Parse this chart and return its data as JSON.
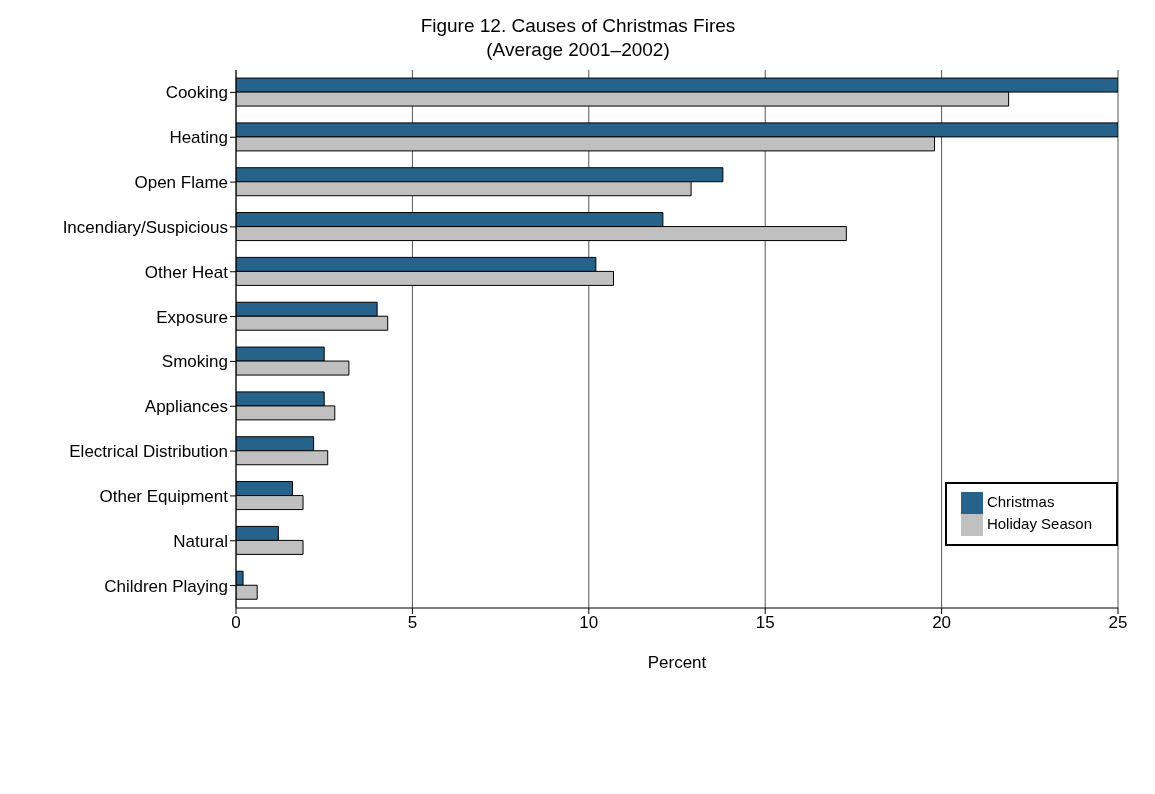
{
  "chart_data": {
    "type": "bar",
    "orientation": "horizontal",
    "title": "Figure 12. Causes of Christmas Fires",
    "subtitle": "(Average 2001–2002)",
    "xlabel": "Percent",
    "categories": [
      "Cooking",
      "Heating",
      "Open Flame",
      "Incendiary/Suspicious",
      "Other Heat",
      "Exposure",
      "Smoking",
      "Appliances",
      "Electrical Distribution",
      "Other Equipment",
      "Natural",
      "Children Playing"
    ],
    "series": [
      {
        "name": "Christmas",
        "color": "#27628a",
        "values": [
          25,
          25,
          13.8,
          12.1,
          10.2,
          4.0,
          2.5,
          2.5,
          2.2,
          1.6,
          1.2,
          0.2
        ]
      },
      {
        "name": "Holiday Season",
        "color": "#c0c0c0",
        "values": [
          21.9,
          19.8,
          12.9,
          17.3,
          10.7,
          4.3,
          3.2,
          2.8,
          2.6,
          1.9,
          1.9,
          0.6
        ]
      }
    ],
    "xlim": [
      0,
      25
    ],
    "xticks": [
      0,
      5,
      10,
      15,
      20,
      25
    ],
    "grid": "x",
    "legend": "right"
  }
}
